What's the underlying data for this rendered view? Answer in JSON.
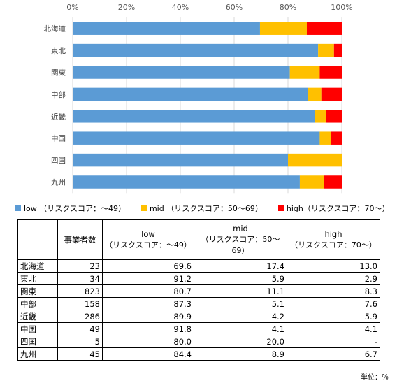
{
  "chart_data": {
    "type": "bar",
    "orientation": "horizontal-stacked-percent",
    "categories": [
      "北海道",
      "東北",
      "関東",
      "中部",
      "近畿",
      "中国",
      "四国",
      "九州"
    ],
    "series": [
      {
        "name": "low（リスクスコア：～49）",
        "color": "#5B9BD5",
        "values": [
          69.6,
          91.2,
          80.7,
          87.3,
          89.9,
          91.8,
          80.0,
          84.4
        ]
      },
      {
        "name": "mid（リスクスコア：50～69）",
        "color": "#FFC000",
        "values": [
          17.4,
          5.9,
          11.1,
          5.1,
          4.2,
          4.1,
          20.0,
          8.9
        ]
      },
      {
        "name": "high（リスクスコア：70～）",
        "color": "#FF0000",
        "values": [
          13.0,
          2.9,
          8.3,
          7.6,
          5.9,
          4.1,
          0,
          6.7
        ]
      }
    ],
    "xlim": [
      0,
      100
    ],
    "xticks": [
      "0%",
      "20%",
      "40%",
      "60%",
      "80%",
      "100%"
    ],
    "grid": true,
    "legend_position": "bottom"
  },
  "legend": [
    {
      "label": "low （リスクスコア：～49）",
      "color": "#5B9BD5"
    },
    {
      "label": "mid （リスクスコア：50～69）",
      "color": "#FFC000"
    },
    {
      "label": "high（リスクスコア：70～）",
      "color": "#FF0000"
    }
  ],
  "table": {
    "headers": [
      {
        "line1": "",
        "line2": ""
      },
      {
        "line1": "事業者数",
        "line2": ""
      },
      {
        "line1": "low",
        "line2": "（リスクスコア：～49）"
      },
      {
        "line1": "mid",
        "line2": "（リスクスコア：50～69）"
      },
      {
        "line1": "high",
        "line2": "（リスクスコア：70～）"
      }
    ],
    "rows": [
      [
        "北海道",
        "23",
        "69.6",
        "17.4",
        "13.0"
      ],
      [
        "東北",
        "34",
        "91.2",
        "5.9",
        "2.9"
      ],
      [
        "関東",
        "823",
        "80.7",
        "11.1",
        "8.3"
      ],
      [
        "中部",
        "158",
        "87.3",
        "5.1",
        "7.6"
      ],
      [
        "近畿",
        "286",
        "89.9",
        "4.2",
        "5.9"
      ],
      [
        "中国",
        "49",
        "91.8",
        "4.1",
        "4.1"
      ],
      [
        "四国",
        "5",
        "80.0",
        "20.0",
        "-"
      ],
      [
        "九州",
        "45",
        "84.4",
        "8.9",
        "6.7"
      ]
    ]
  },
  "unit_note": "単位：％"
}
